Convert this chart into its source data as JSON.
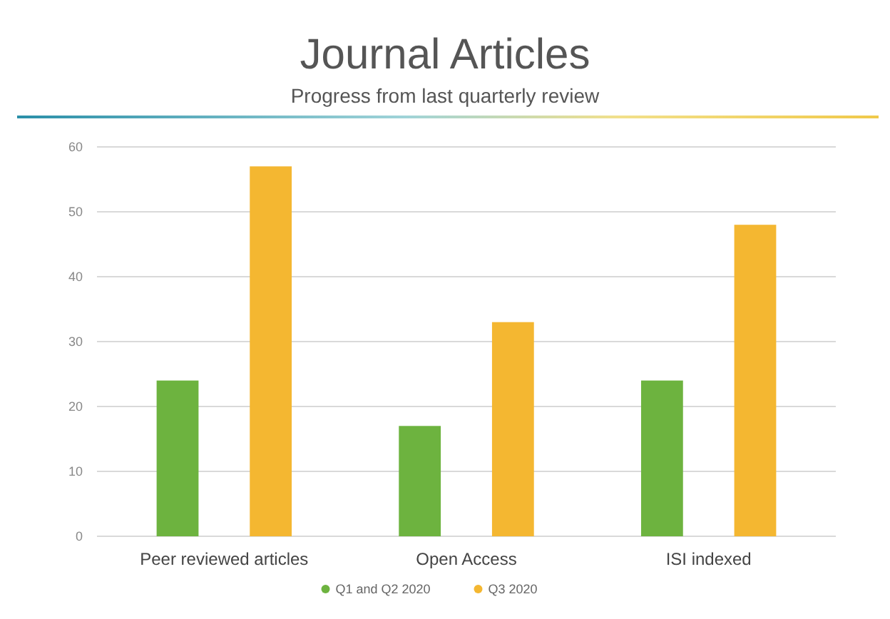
{
  "chart_data": {
    "type": "bar",
    "title": "Journal Articles",
    "subtitle": "Progress from last quarterly review",
    "categories": [
      "Peer reviewed articles",
      "Open Access",
      "ISI indexed"
    ],
    "series": [
      {
        "name": "Q1 and Q2 2020",
        "color": "#6db33f",
        "values": [
          24,
          17,
          24
        ]
      },
      {
        "name": "Q3 2020",
        "color": "#f4b731",
        "values": [
          57,
          33,
          48
        ]
      }
    ],
    "ylim": [
      0,
      60
    ],
    "yticks": [
      0,
      10,
      20,
      30,
      40,
      50,
      60
    ],
    "grid": "y",
    "legend": "bottom"
  }
}
